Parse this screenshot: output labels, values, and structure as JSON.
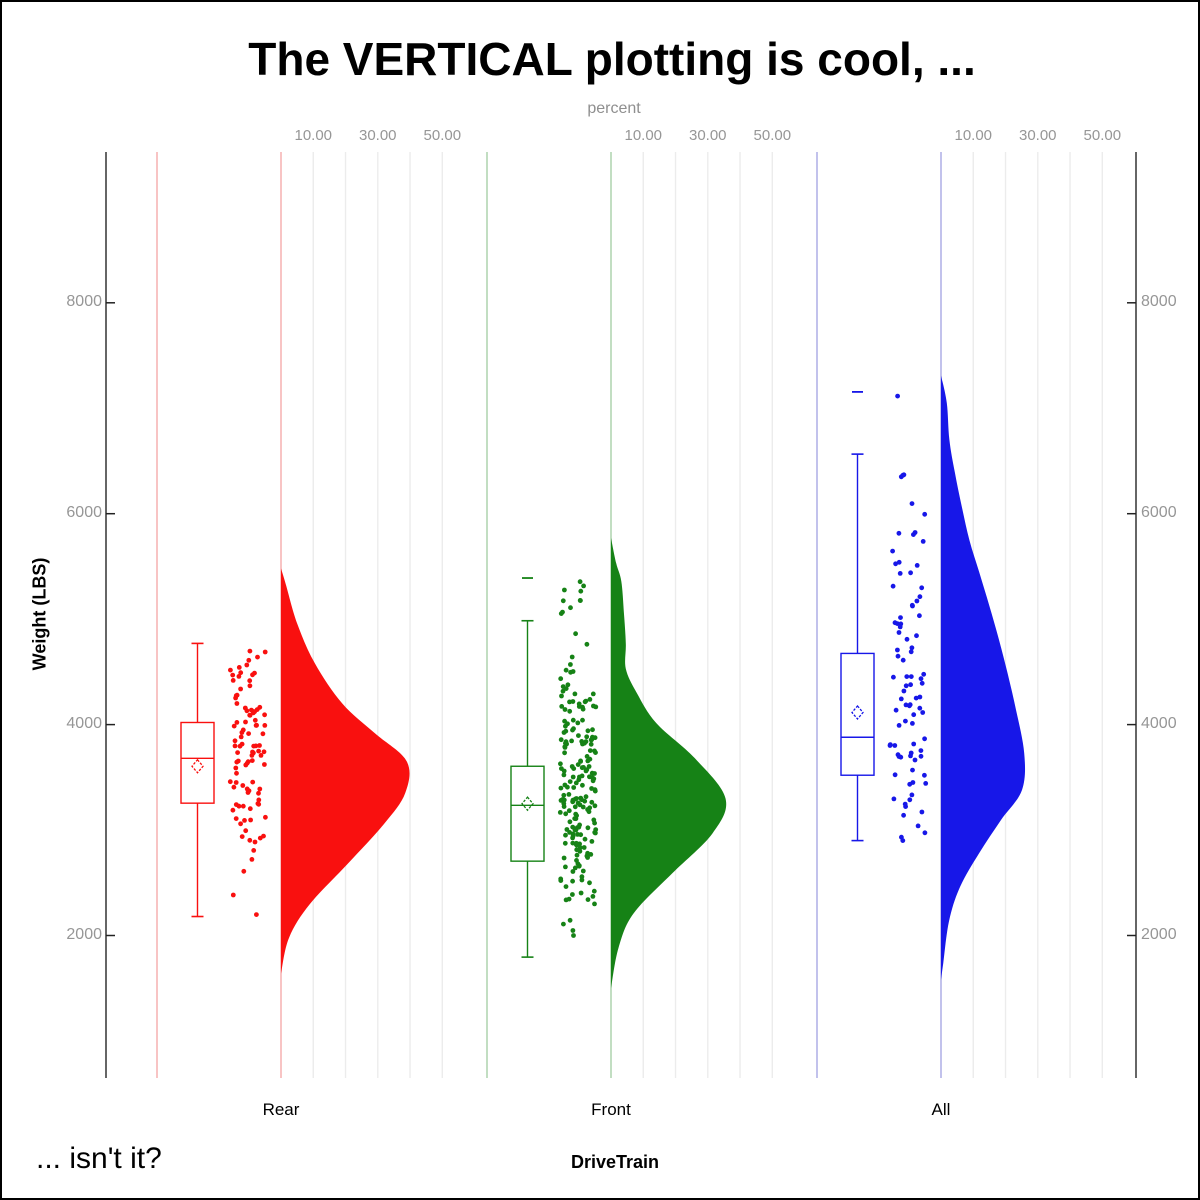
{
  "title": "The VERTICAL plotting is cool, ...",
  "footnote": "... isn't it?",
  "percent_axis": {
    "label": "percent",
    "tick_labels": [
      "10.00",
      "30.00",
      "50.00"
    ],
    "tick_values": [
      10,
      30,
      50
    ],
    "grid_values": [
      10,
      20,
      30,
      40,
      50
    ]
  },
  "y_axis": {
    "label": "Weight (LBS)",
    "tick_labels": [
      "2000",
      "4000",
      "6000",
      "8000"
    ],
    "tick_values": [
      2000,
      4000,
      6000,
      8000
    ],
    "range": [
      1280,
      9420
    ]
  },
  "x_axis": {
    "label": "DriveTrain",
    "categories": [
      "Rear",
      "Front",
      "All"
    ]
  },
  "colors": {
    "rear": "#f9100f",
    "rear_light": "#f7bdbd",
    "front": "#168216",
    "front_light": "#bcdabc",
    "all": "#1717e8",
    "all_light": "#bcbcea",
    "grid": "#ececec",
    "axis": "#000000",
    "tick_text": "#969696"
  },
  "chart_data": {
    "type": "raincloud",
    "orientation": "vertical",
    "value_unit": "LBS",
    "density_unit": "percent",
    "groups": [
      {
        "name": "Rear",
        "color": "#f9100f",
        "light_color": "#f7bdbd",
        "box": {
          "whisker_low": 2180,
          "q1": 3255,
          "median": 3680,
          "q3": 4020,
          "whisker_high": 4770
        },
        "mean": 3605,
        "violin_percent_by_weight": [
          [
            5480,
            0
          ],
          [
            5330,
            1.5
          ],
          [
            4960,
            5
          ],
          [
            4580,
            10.5
          ],
          [
            4200,
            19
          ],
          [
            3920,
            29
          ],
          [
            3650,
            39
          ],
          [
            3350,
            38.5
          ],
          [
            3060,
            32
          ],
          [
            2690,
            21
          ],
          [
            2300,
            9
          ],
          [
            1980,
            2.5
          ],
          [
            1640,
            0
          ]
        ],
        "points": {
          "count": 100,
          "seed": 7,
          "strata": [
            [
              4500,
              4770,
              7
            ],
            [
              4150,
              4500,
              15
            ],
            [
              3800,
              4150,
              24
            ],
            [
              3450,
              3800,
              23
            ],
            [
              3100,
              3450,
              17
            ],
            [
              2750,
              3100,
              10
            ],
            [
              2550,
              2750,
              2
            ],
            [
              2350,
              2400,
              1
            ],
            [
              2160,
              2200,
              1
            ]
          ]
        }
      },
      {
        "name": "Front",
        "color": "#168216",
        "light_color": "#bcdabc",
        "box": {
          "whisker_low": 1795,
          "q1": 2705,
          "median": 3235,
          "q3": 3605,
          "whisker_high": 4985,
          "outlier_cap": 5390
        },
        "mean": 3250,
        "violin_percent_by_weight": [
          [
            5770,
            0
          ],
          [
            5530,
            1.6
          ],
          [
            5360,
            3.2
          ],
          [
            5060,
            4.0
          ],
          [
            4770,
            4.6
          ],
          [
            4530,
            4.6
          ],
          [
            4300,
            8
          ],
          [
            4015,
            14
          ],
          [
            3680,
            26
          ],
          [
            3300,
            35.5
          ],
          [
            2970,
            31.5
          ],
          [
            2590,
            19
          ],
          [
            2210,
            7
          ],
          [
            1880,
            2.3
          ],
          [
            1500,
            0
          ]
        ],
        "points": {
          "count": 208,
          "seed": 13,
          "strata": [
            [
              5050,
              5400,
              10
            ],
            [
              4600,
              5000,
              3
            ],
            [
              4250,
              4600,
              12
            ],
            [
              3900,
              4250,
              26
            ],
            [
              3550,
              3900,
              38
            ],
            [
              3200,
              3550,
              44
            ],
            [
              2850,
              3200,
              38
            ],
            [
              2500,
              2850,
              24
            ],
            [
              2150,
              2500,
              9
            ],
            [
              1950,
              2150,
              4
            ]
          ]
        }
      },
      {
        "name": "All",
        "color": "#1717e8",
        "light_color": "#bcbcea",
        "box": {
          "whisker_low": 2900,
          "q1": 3520,
          "median": 3880,
          "q3": 4675,
          "whisker_high": 6565,
          "outlier_cap": 7155
        },
        "mean": 4115,
        "violin_percent_by_weight": [
          [
            7310,
            0
          ],
          [
            7050,
            1.8
          ],
          [
            6700,
            2.6
          ],
          [
            6390,
            4.3
          ],
          [
            6075,
            6.4
          ],
          [
            5750,
            8.8
          ],
          [
            5440,
            11.9
          ],
          [
            5125,
            15
          ],
          [
            4800,
            18
          ],
          [
            4490,
            20.6
          ],
          [
            4175,
            23
          ],
          [
            3730,
            25.8
          ],
          [
            3380,
            25.1
          ],
          [
            3095,
            18.6
          ],
          [
            2780,
            11.8
          ],
          [
            2460,
            5.9
          ],
          [
            2140,
            2.5
          ],
          [
            1740,
            0.7
          ],
          [
            1580,
            0
          ]
        ],
        "points": {
          "count": 88,
          "seed": 29,
          "strata": [
            [
              7100,
              7200,
              1
            ],
            [
              6300,
              6500,
              3
            ],
            [
              5800,
              6200,
              5
            ],
            [
              5400,
              5800,
              7
            ],
            [
              5000,
              5400,
              8
            ],
            [
              4650,
              5000,
              10
            ],
            [
              4300,
              4650,
              11
            ],
            [
              3950,
              4300,
              13
            ],
            [
              3600,
              3950,
              13
            ],
            [
              3250,
              3600,
              9
            ],
            [
              2950,
              3250,
              6
            ],
            [
              2890,
              2950,
              2
            ]
          ]
        }
      }
    ]
  }
}
